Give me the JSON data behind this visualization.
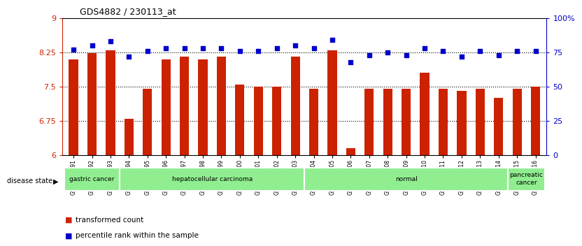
{
  "title": "GDS4882 / 230113_at",
  "samples": [
    "GSM1200291",
    "GSM1200292",
    "GSM1200293",
    "GSM1200294",
    "GSM1200295",
    "GSM1200296",
    "GSM1200297",
    "GSM1200298",
    "GSM1200299",
    "GSM1200300",
    "GSM1200301",
    "GSM1200302",
    "GSM1200303",
    "GSM1200304",
    "GSM1200305",
    "GSM1200306",
    "GSM1200307",
    "GSM1200308",
    "GSM1200309",
    "GSM1200310",
    "GSM1200311",
    "GSM1200312",
    "GSM1200313",
    "GSM1200314",
    "GSM1200315",
    "GSM1200316"
  ],
  "bar_values": [
    8.1,
    8.24,
    8.3,
    6.8,
    7.45,
    8.1,
    8.15,
    8.1,
    8.15,
    7.55,
    7.5,
    7.5,
    8.15,
    7.45,
    8.3,
    6.15,
    7.45,
    7.45,
    7.45,
    7.8,
    7.45,
    7.4,
    7.45,
    7.25,
    7.45,
    7.5
  ],
  "percentile_values": [
    77,
    80,
    83,
    72,
    76,
    78,
    78,
    78,
    78,
    76,
    76,
    78,
    80,
    78,
    84,
    68,
    73,
    75,
    73,
    78,
    76,
    72,
    76,
    73,
    76,
    76
  ],
  "bar_color": "#CC2200",
  "dot_color": "#0000CC",
  "ylim_left": [
    6,
    9
  ],
  "ylim_right": [
    0,
    100
  ],
  "yticks_left": [
    6,
    6.75,
    7.5,
    8.25,
    9
  ],
  "ytick_labels_left": [
    "6",
    "6.75",
    "7.5",
    "8.25",
    "9"
  ],
  "yticks_right": [
    0,
    25,
    50,
    75,
    100
  ],
  "ytick_labels_right": [
    "0",
    "25",
    "50",
    "75",
    "100%"
  ],
  "disease_groups": [
    {
      "label": "gastric cancer",
      "start": 0,
      "end": 2
    },
    {
      "label": "hepatocellular carcinoma",
      "start": 3,
      "end": 12
    },
    {
      "label": "normal",
      "start": 13,
      "end": 23
    },
    {
      "label": "pancreatic\ncancer",
      "start": 24,
      "end": 25
    }
  ],
  "group_color": "#90EE90",
  "legend_items": [
    {
      "label": "transformed count",
      "color": "#CC2200"
    },
    {
      "label": "percentile rank within the sample",
      "color": "#0000CC"
    }
  ],
  "bg_color": "#FFFFFF",
  "title_fontsize": 9,
  "dot_size": 18
}
